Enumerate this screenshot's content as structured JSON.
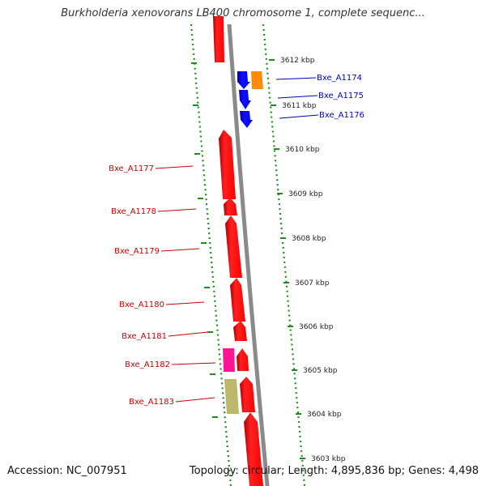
{
  "title": "Burkholderia xenovorans LB400 chromosome 1, complete sequenc...",
  "footer": {
    "accession": "Accession: NC_007951",
    "topology": "Topology: circular; Length: 4,895,836 bp; Genes: 4,498"
  },
  "colors": {
    "red_gene": "#ff0000",
    "blue_gene": "#0000ff",
    "orange_gene": "#ff8c00",
    "magenta_gene": "#ff1493",
    "khaki_gene": "#bdb76b",
    "backbone": "#8a8a8a",
    "dotted_ruler": "#228b22",
    "left_label": "#cc0000",
    "right_label": "#0000bb"
  },
  "ticks": [
    {
      "label": "3612 kbp"
    },
    {
      "label": "3611 kbp"
    },
    {
      "label": "3610 kbp"
    },
    {
      "label": "3609 kbp"
    },
    {
      "label": "3608 kbp"
    },
    {
      "label": "3607 kbp"
    },
    {
      "label": "3606 kbp"
    },
    {
      "label": "3605 kbp"
    },
    {
      "label": "3604 kbp"
    },
    {
      "label": "3603 kbp"
    }
  ],
  "genes_right": [
    {
      "label": "Bxe_A1174",
      "color": "#0000bb"
    },
    {
      "label": "Bxe_A1175",
      "color": "#0000bb"
    },
    {
      "label": "Bxe_A1176",
      "color": "#0000bb"
    }
  ],
  "genes_left": [
    {
      "label": "Bxe_A1177",
      "color": "#cc0000"
    },
    {
      "label": "Bxe_A1178",
      "color": "#cc0000"
    },
    {
      "label": "Bxe_A1179",
      "color": "#cc0000"
    },
    {
      "label": "Bxe_A1180",
      "color": "#cc0000"
    },
    {
      "label": "Bxe_A1181",
      "color": "#cc0000"
    },
    {
      "label": "Bxe_A1182",
      "color": "#cc0000"
    },
    {
      "label": "Bxe_A1183",
      "color": "#cc0000"
    }
  ]
}
